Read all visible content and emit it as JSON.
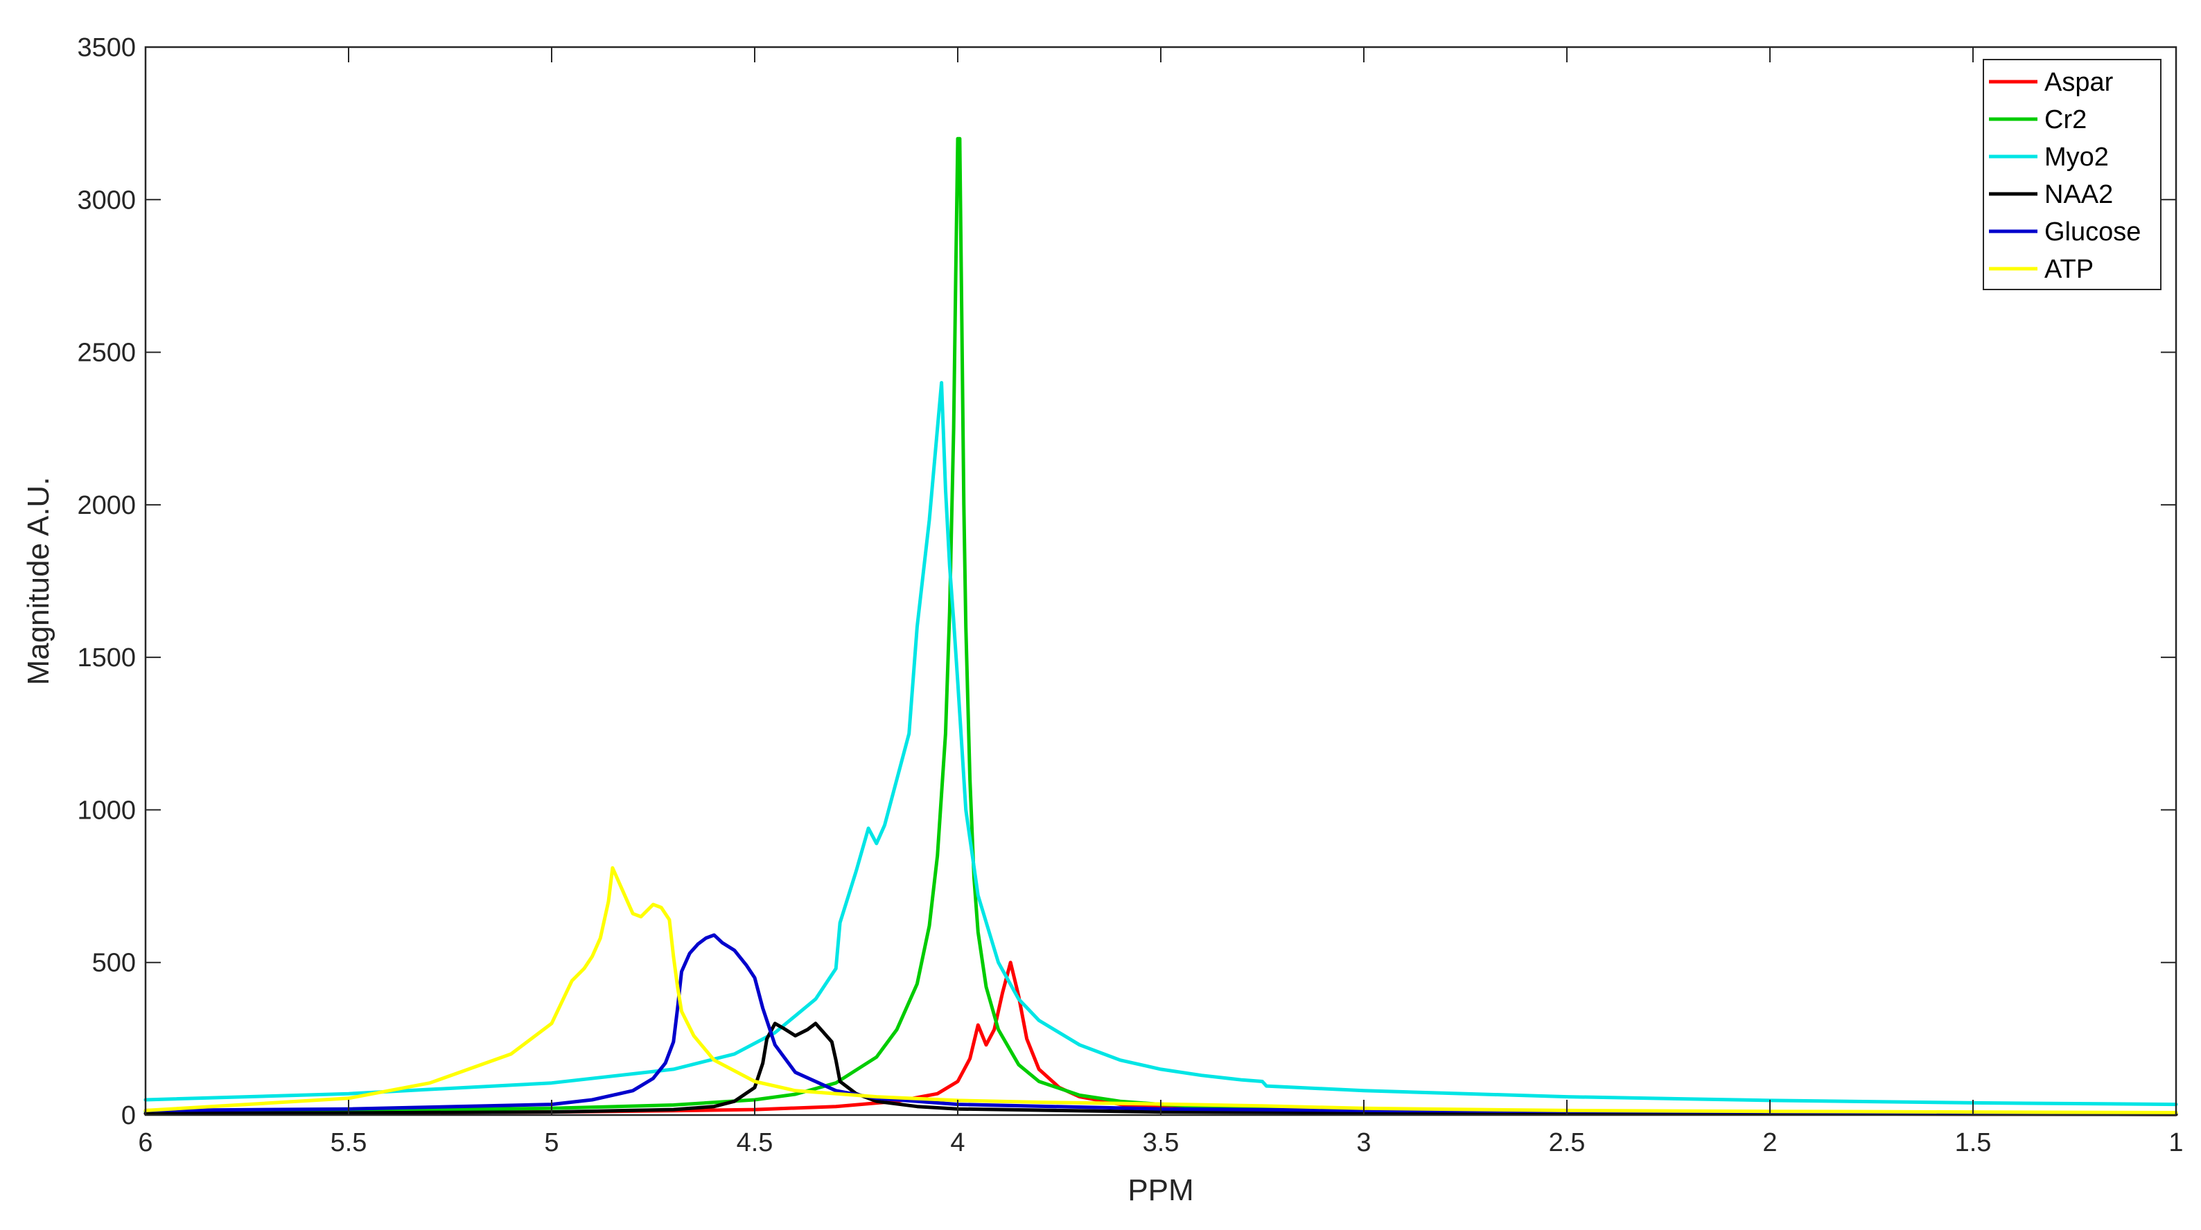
{
  "chart_data": {
    "type": "line",
    "xlabel": "PPM",
    "ylabel": "Magnitude A.U.",
    "xlim": [
      6,
      1
    ],
    "x_reversed": true,
    "ylim": [
      0,
      3500
    ],
    "xticks": [
      6,
      5.5,
      5,
      4.5,
      4,
      3.5,
      3,
      2.5,
      2,
      1.5,
      1
    ],
    "xtick_labels": [
      "6",
      "5.5",
      "5",
      "4.5",
      "4",
      "3.5",
      "3",
      "2.5",
      "2",
      "1.5",
      "1"
    ],
    "yticks": [
      0,
      500,
      1000,
      1500,
      2000,
      2500,
      3000,
      3500
    ],
    "ytick_labels": [
      "0",
      "500",
      "1000",
      "1500",
      "2000",
      "2500",
      "3000",
      "3500"
    ],
    "grid": false,
    "legend_position": "top-right",
    "series": [
      {
        "name": "Aspar",
        "color": "#ff0000",
        "x": [
          6.0,
          5.5,
          5.0,
          4.7,
          4.5,
          4.3,
          4.15,
          4.05,
          4.0,
          3.97,
          3.95,
          3.93,
          3.91,
          3.89,
          3.87,
          3.85,
          3.83,
          3.8,
          3.75,
          3.7,
          3.6,
          3.5,
          3.4,
          3.25,
          3.0,
          2.5,
          2.0,
          1.5,
          1.0
        ],
        "y": [
          5,
          7,
          10,
          14,
          18,
          28,
          45,
          70,
          110,
          185,
          295,
          230,
          280,
          400,
          500,
          390,
          250,
          150,
          90,
          60,
          35,
          24,
          18,
          12,
          8,
          5,
          4,
          3,
          2
        ]
      },
      {
        "name": "Cr2",
        "color": "#00cc00",
        "x": [
          6.0,
          5.5,
          5.0,
          4.7,
          4.5,
          4.4,
          4.3,
          4.2,
          4.15,
          4.1,
          4.07,
          4.05,
          4.03,
          4.02,
          4.01,
          4.005,
          4.0,
          3.995,
          3.99,
          3.985,
          3.98,
          3.97,
          3.96,
          3.95,
          3.93,
          3.9,
          3.85,
          3.8,
          3.7,
          3.6,
          3.5,
          3.4,
          3.25,
          3.0,
          2.5,
          2.0,
          1.5,
          1.0
        ],
        "y": [
          12,
          15,
          22,
          33,
          50,
          68,
          105,
          190,
          280,
          430,
          620,
          850,
          1250,
          1650,
          2250,
          2750,
          3200,
          3200,
          2600,
          2000,
          1600,
          1100,
          780,
          600,
          420,
          280,
          165,
          110,
          65,
          45,
          35,
          28,
          20,
          15,
          10,
          7,
          5,
          4
        ]
      },
      {
        "name": "Myo2",
        "color": "#00e5e5",
        "x": [
          6.0,
          5.5,
          5.0,
          4.7,
          4.55,
          4.45,
          4.35,
          4.3,
          4.29,
          4.25,
          4.22,
          4.2,
          4.18,
          4.15,
          4.12,
          4.1,
          4.07,
          4.05,
          4.04,
          4.03,
          4.02,
          4.01,
          4.0,
          3.98,
          3.95,
          3.9,
          3.85,
          3.8,
          3.7,
          3.6,
          3.5,
          3.4,
          3.3,
          3.25,
          3.24,
          3.0,
          2.5,
          2.0,
          1.5,
          1.0
        ],
        "y": [
          50,
          70,
          105,
          150,
          200,
          270,
          380,
          480,
          630,
          800,
          940,
          890,
          950,
          1100,
          1250,
          1600,
          1950,
          2250,
          2400,
          2050,
          1800,
          1620,
          1420,
          1000,
          720,
          500,
          380,
          310,
          230,
          180,
          150,
          130,
          115,
          110,
          95,
          80,
          60,
          48,
          40,
          35
        ]
      },
      {
        "name": "NAA2",
        "color": "#000000",
        "x": [
          6.0,
          5.5,
          5.0,
          4.7,
          4.6,
          4.55,
          4.5,
          4.48,
          4.47,
          4.45,
          4.43,
          4.4,
          4.37,
          4.35,
          4.33,
          4.31,
          4.3,
          4.29,
          4.25,
          4.2,
          4.1,
          4.0,
          3.5,
          3.0,
          2.5,
          2.0,
          1.5,
          1.0
        ],
        "y": [
          5,
          7,
          10,
          18,
          28,
          45,
          90,
          170,
          250,
          300,
          285,
          260,
          280,
          300,
          270,
          240,
          180,
          110,
          70,
          45,
          28,
          20,
          10,
          7,
          5,
          4,
          3,
          2
        ]
      },
      {
        "name": "Glucose",
        "color": "#0000cc",
        "x": [
          6.0,
          5.5,
          5.0,
          4.9,
          4.8,
          4.75,
          4.72,
          4.7,
          4.69,
          4.68,
          4.66,
          4.64,
          4.62,
          4.6,
          4.58,
          4.55,
          4.52,
          4.5,
          4.48,
          4.45,
          4.4,
          4.3,
          4.2,
          4.0,
          3.5,
          3.0,
          2.5,
          2.0,
          1.5,
          1.0
        ],
        "y": [
          15,
          20,
          35,
          50,
          80,
          120,
          170,
          240,
          350,
          470,
          530,
          560,
          580,
          590,
          565,
          540,
          490,
          450,
          350,
          230,
          140,
          80,
          55,
          35,
          20,
          15,
          12,
          10,
          8,
          7
        ]
      },
      {
        "name": "ATP",
        "color": "#ffff00",
        "x": [
          6.0,
          5.5,
          5.3,
          5.1,
          5.0,
          4.95,
          4.92,
          4.9,
          4.88,
          4.86,
          4.85,
          4.84,
          4.82,
          4.8,
          4.78,
          4.75,
          4.73,
          4.71,
          4.7,
          4.69,
          4.68,
          4.65,
          4.6,
          4.5,
          4.4,
          4.2,
          4.0,
          3.8,
          3.5,
          3.25,
          3.0,
          2.5,
          2.0,
          1.5,
          1.0
        ],
        "y": [
          15,
          55,
          105,
          200,
          300,
          440,
          480,
          520,
          580,
          700,
          810,
          780,
          720,
          660,
          650,
          690,
          680,
          640,
          520,
          420,
          340,
          260,
          180,
          110,
          80,
          60,
          48,
          42,
          36,
          30,
          22,
          15,
          12,
          10,
          8
        ]
      }
    ]
  }
}
